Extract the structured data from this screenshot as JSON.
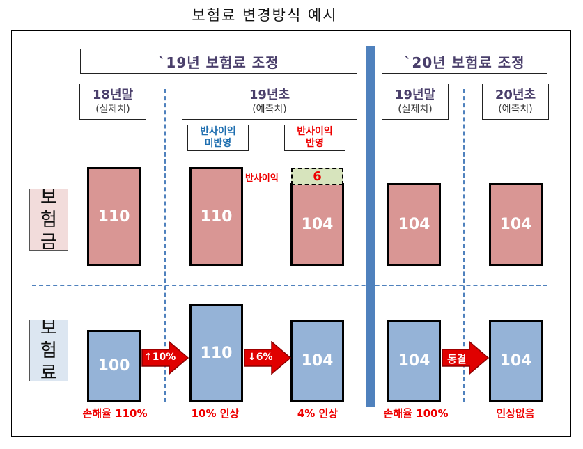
{
  "title": "보험료 변경방식 예시",
  "headers": {
    "y19": "`19년 보험료 조정",
    "y20": "`20년 보험료 조정"
  },
  "columns": [
    {
      "title": "18년말",
      "sub": "(실제치)"
    },
    {
      "title": "19년초",
      "sub": "(예측치)"
    },
    {
      "title": "19년말",
      "sub": "(실제치)"
    },
    {
      "title": "20년초",
      "sub": "(예측치)"
    }
  ],
  "tags": {
    "not_reflected": [
      "반사이익",
      "미반영"
    ],
    "reflected": [
      "반사이익",
      "반영"
    ]
  },
  "side_labels": {
    "benefit": [
      "보",
      "험",
      "금"
    ],
    "premium": [
      "보",
      "험",
      "료"
    ]
  },
  "benefit_bars": [
    "110",
    "110",
    "104",
    "104",
    "104"
  ],
  "reflect": {
    "label": "반사이익",
    "value": "6"
  },
  "premium_bars": [
    "100",
    "110",
    "104",
    "104",
    "104"
  ],
  "arrows": [
    "↑10%",
    "↓6%",
    "동결"
  ],
  "notes": [
    "손해율 110%",
    "10% 인상",
    "4% 인상",
    "손해율 100%",
    "인상없음"
  ],
  "colors": {
    "benefit_bar": "#d99694",
    "premium_bar": "#95b3d7",
    "divider": "#4f81bd",
    "arrow": "#e00000",
    "reflect_box": "#d7e4bd"
  }
}
